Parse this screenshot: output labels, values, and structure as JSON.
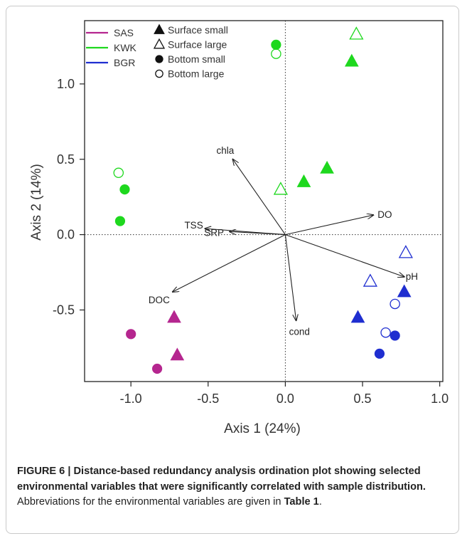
{
  "chart_data": {
    "type": "scatter",
    "xlabel": "Axis 1 (24%)",
    "ylabel": "Axis 2 (14%)",
    "xlim": [
      -1.3,
      1.02
    ],
    "ylim": [
      -0.975,
      1.42
    ],
    "xticks": [
      {
        "value": -1.0,
        "label": "-1.0"
      },
      {
        "value": -0.5,
        "label": "-0.5"
      },
      {
        "value": 0.0,
        "label": "0.0"
      },
      {
        "value": 0.5,
        "label": "0.5"
      },
      {
        "value": 1.0,
        "label": "1.0"
      }
    ],
    "yticks": [
      {
        "value": -0.5,
        "label": "-0.5"
      },
      {
        "value": 0.0,
        "label": "0.0"
      },
      {
        "value": 0.5,
        "label": "0.5"
      },
      {
        "value": 1.0,
        "label": "1.0"
      }
    ],
    "legend_placement": "top-left",
    "groups": [
      {
        "name": "SAS",
        "color": "#b5268f"
      },
      {
        "name": "KWK",
        "color": "#1ed81e"
      },
      {
        "name": "BGR",
        "color": "#1f2ed0"
      }
    ],
    "markers": [
      {
        "name": "Surface small",
        "shape": "triangle",
        "fill": true
      },
      {
        "name": "Surface large",
        "shape": "triangle",
        "fill": false
      },
      {
        "name": "Bottom small",
        "shape": "circle",
        "fill": true
      },
      {
        "name": "Bottom large",
        "shape": "circle",
        "fill": false
      }
    ],
    "points": [
      {
        "group": "SAS",
        "marker": "Surface small",
        "x": -0.72,
        "y": -0.55
      },
      {
        "group": "SAS",
        "marker": "Surface small",
        "x": -0.7,
        "y": -0.8
      },
      {
        "group": "SAS",
        "marker": "Bottom small",
        "x": -1.0,
        "y": -0.66
      },
      {
        "group": "SAS",
        "marker": "Bottom small",
        "x": -0.83,
        "y": -0.89
      },
      {
        "group": "KWK",
        "marker": "Surface small",
        "x": 0.12,
        "y": 0.35
      },
      {
        "group": "KWK",
        "marker": "Surface small",
        "x": 0.27,
        "y": 0.44
      },
      {
        "group": "KWK",
        "marker": "Surface small",
        "x": 0.43,
        "y": 1.15
      },
      {
        "group": "KWK",
        "marker": "Surface large",
        "x": -0.03,
        "y": 0.3
      },
      {
        "group": "KWK",
        "marker": "Surface large",
        "x": 0.46,
        "y": 1.33
      },
      {
        "group": "KWK",
        "marker": "Bottom small",
        "x": -1.04,
        "y": 0.3
      },
      {
        "group": "KWK",
        "marker": "Bottom small",
        "x": -1.07,
        "y": 0.09
      },
      {
        "group": "KWK",
        "marker": "Bottom small",
        "x": -0.06,
        "y": 1.26
      },
      {
        "group": "KWK",
        "marker": "Bottom large",
        "x": -1.08,
        "y": 0.41
      },
      {
        "group": "KWK",
        "marker": "Bottom large",
        "x": -0.06,
        "y": 1.2
      },
      {
        "group": "BGR",
        "marker": "Surface small",
        "x": 0.47,
        "y": -0.55
      },
      {
        "group": "BGR",
        "marker": "Surface small",
        "x": 0.77,
        "y": -0.38
      },
      {
        "group": "BGR",
        "marker": "Surface large",
        "x": 0.55,
        "y": -0.31
      },
      {
        "group": "BGR",
        "marker": "Surface large",
        "x": 0.78,
        "y": -0.12
      },
      {
        "group": "BGR",
        "marker": "Bottom small",
        "x": 0.61,
        "y": -0.79
      },
      {
        "group": "BGR",
        "marker": "Bottom small",
        "x": 0.71,
        "y": -0.67
      },
      {
        "group": "BGR",
        "marker": "Bottom large",
        "x": 0.65,
        "y": -0.65
      },
      {
        "group": "BGR",
        "marker": "Bottom large",
        "x": 0.71,
        "y": -0.46
      }
    ],
    "vectors": [
      {
        "label": "chla",
        "x": -0.34,
        "y": 0.5
      },
      {
        "label": "DO",
        "x": 0.57,
        "y": 0.13
      },
      {
        "label": "pH",
        "x": 0.77,
        "y": -0.28
      },
      {
        "label": "cond",
        "x": 0.07,
        "y": -0.57
      },
      {
        "label": "DOC",
        "x": -0.73,
        "y": -0.38
      },
      {
        "label": "TSS",
        "x": -0.52,
        "y": 0.04
      },
      {
        "label": "SRP",
        "x": -0.36,
        "y": 0.02
      }
    ]
  },
  "caption": {
    "bold": "FIGURE 6 | Distance-based redundancy analysis ordination plot showing selected environmental variables that were significantly correlated with sample distribution.",
    "text1": " Abbreviations for the environmental variables are given in ",
    "table_ref": "Table 1",
    "text2": "."
  }
}
